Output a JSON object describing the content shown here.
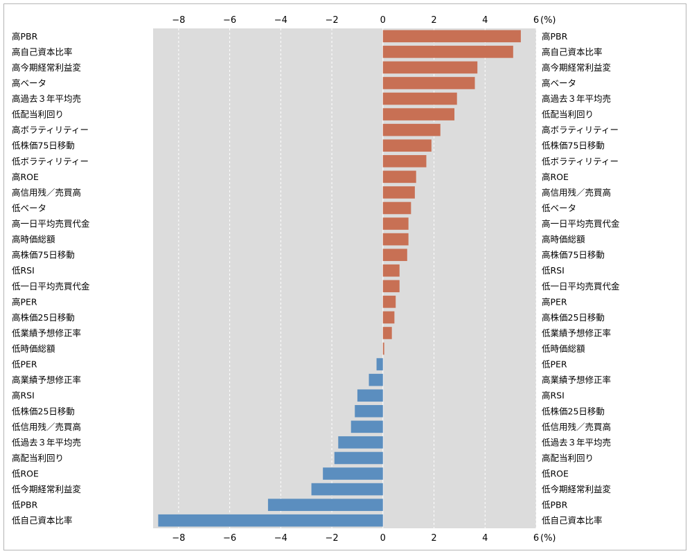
{
  "chart_data": {
    "type": "bar",
    "orientation": "horizontal",
    "unit_label": "(%)",
    "xlim": [
      -9,
      6
    ],
    "xticks": [
      -8,
      -6,
      -4,
      -2,
      0,
      2,
      4,
      6
    ],
    "grid": "vertical dashed white",
    "colors": {
      "positive": "#c87054",
      "negative": "#5b8ebf",
      "plot_background": "#dcdcdc"
    },
    "categories": [
      "高PBR",
      "高自己資本比率",
      "高今期経常利益変",
      "高ベータ",
      "高過去３年平均売",
      "低配当利回り",
      "高ボラティリティー",
      "低株価75日移動",
      "低ボラティリティー",
      "高ROE",
      "高信用残／売買高",
      "低ベータ",
      "高一日平均売買代金",
      "高時価総額",
      "高株価75日移動",
      "低RSI",
      "低一日平均売買代金",
      "高PER",
      "高株価25日移動",
      "低業績予想修正率",
      "低時価総額",
      "低PER",
      "高業績予想修正率",
      "高RSI",
      "低株価25日移動",
      "低信用残／売買高",
      "低過去３年平均売",
      "高配当利回り",
      "低ROE",
      "低今期経常利益変",
      "低PBR",
      "低自己資本比率"
    ],
    "values": [
      5.4,
      5.1,
      3.7,
      3.6,
      2.9,
      2.8,
      2.25,
      1.9,
      1.7,
      1.3,
      1.25,
      1.1,
      1.0,
      1.0,
      0.95,
      0.65,
      0.65,
      0.5,
      0.45,
      0.35,
      0.05,
      -0.25,
      -0.55,
      -1.0,
      -1.1,
      -1.25,
      -1.75,
      -1.9,
      -2.35,
      -2.8,
      -4.5,
      -8.8
    ]
  }
}
